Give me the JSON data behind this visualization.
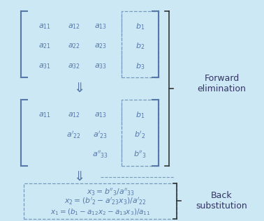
{
  "bg_color": "#cce8f4",
  "text_color": "#5577aa",
  "label_color": "#333366",
  "dashed_color": "#7799bb",
  "bracket_color": "#5577aa",
  "arrow_color": "#5577aa",
  "side_bracket_color": "#333333",
  "forward_label": "Forward\nelimination",
  "back_label": "Back\nsubstitution",
  "figsize": [
    3.78,
    3.17
  ],
  "dpi": 100,
  "m1_entries": [
    [
      "$a_{11}$",
      "$a_{12}$",
      "$a_{13}$",
      "$b_1$"
    ],
    [
      "$a_{21}$",
      "$a_{22}$",
      "$a_{23}$",
      "$b_2$"
    ],
    [
      "$a_{31}$",
      "$a_{32}$",
      "$a_{33}$",
      "$b_3$"
    ]
  ],
  "m2_entries": [
    [
      "$a_{11}$",
      "$a_{12}$",
      "$a_{13}$",
      "$b_1$"
    ],
    [
      "",
      "$a'_{22}$",
      "$a'_{23}$",
      "$b'_2$"
    ],
    [
      "",
      "",
      "$a''_{33}$",
      "$b''_3$"
    ]
  ],
  "eq1": "$x_3 = b''_3/a''_{33}$",
  "eq2": "$x_2 = (b'_2 - a'_{23}x_3)/a'_{22}$",
  "eq3": "$x_1 = (b_1 - a_{12}x_2 - a_{13}x_3)/a_{11}$"
}
